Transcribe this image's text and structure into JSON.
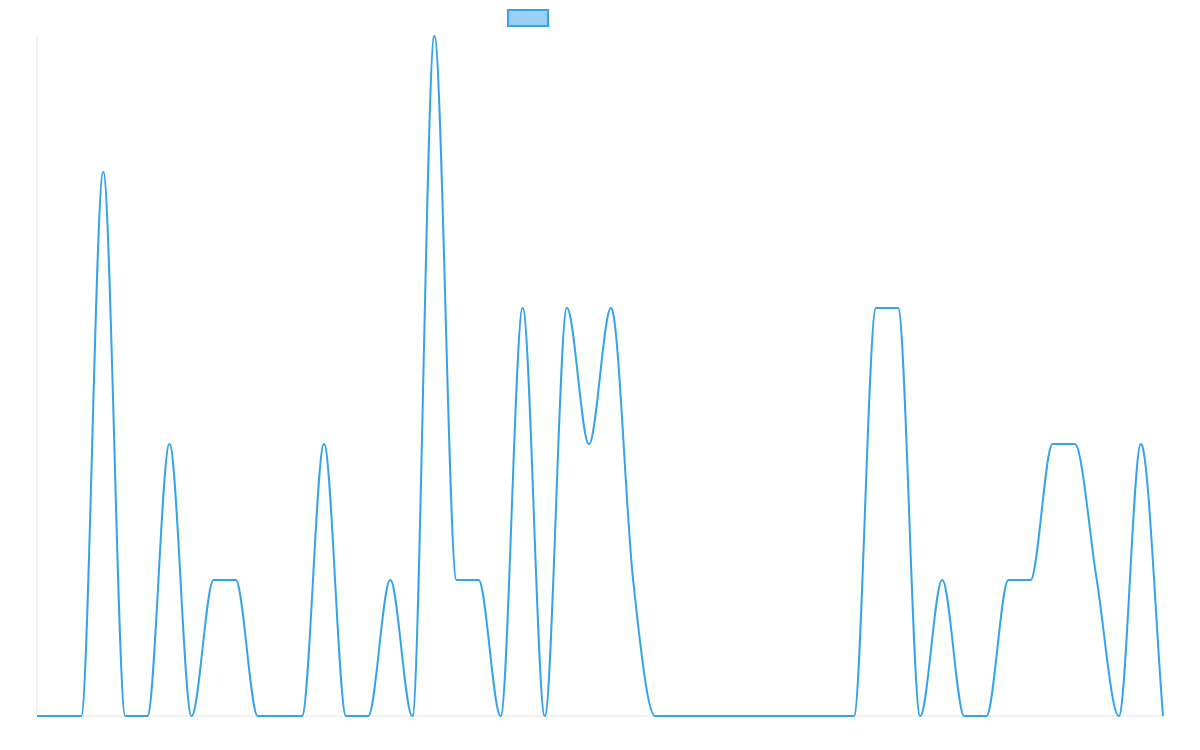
{
  "chart_data": {
    "type": "line",
    "title": "",
    "xlabel": "",
    "ylabel": "",
    "grid": false,
    "legend": {
      "position": "top-center"
    },
    "colors": {
      "series_stroke": "#36a2eb",
      "legend_fill": "#9ad0f5",
      "axis": "#e6e6e6"
    },
    "x": [
      0,
      1,
      2,
      3,
      4,
      5,
      6,
      7,
      8,
      9,
      10,
      11,
      12,
      13,
      14,
      15,
      16,
      17,
      18,
      19,
      20,
      21,
      22,
      23,
      24,
      25,
      26,
      27,
      28,
      29,
      30,
      31,
      32,
      33,
      34,
      35,
      36,
      37,
      38,
      39,
      40,
      41,
      42,
      43,
      44,
      45,
      46,
      47,
      48,
      49,
      50,
      51
    ],
    "ylim": [
      0,
      5
    ],
    "series": [
      {
        "name": "",
        "values": [
          0,
          0,
          0,
          4,
          0,
          0,
          2,
          0,
          1,
          1,
          0,
          0,
          0,
          2,
          0,
          0,
          1,
          0,
          5,
          1,
          1,
          0,
          3,
          0,
          3,
          2,
          3,
          1,
          0,
          0,
          0,
          0,
          0,
          0,
          0,
          0,
          0,
          0,
          3,
          3,
          0,
          1,
          0,
          0,
          1,
          1,
          2,
          2,
          1,
          0,
          2,
          0
        ]
      }
    ]
  }
}
